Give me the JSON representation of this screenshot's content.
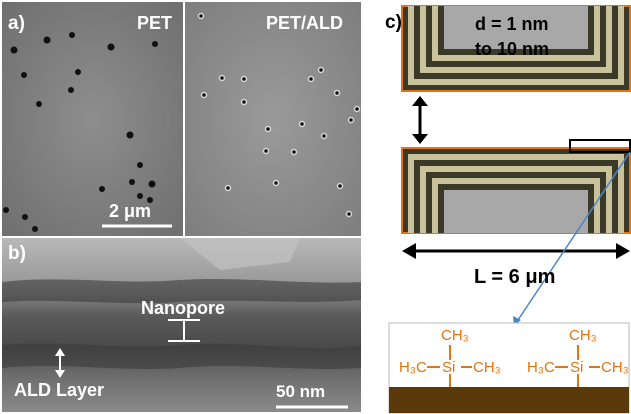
{
  "panels": {
    "a": {
      "letter": "a)",
      "left_title": "PET",
      "right_title": "PET/ALD",
      "scale_bar": "2 μm"
    },
    "b": {
      "letter": "b)",
      "nanopore_label": "Nanopore",
      "ald_label": "ALD Layer",
      "scale_bar": "50 nm"
    },
    "c": {
      "letter": "c)",
      "d_line1": "d = 1 nm",
      "d_line2": "to 10 nm",
      "length_label": "L = 6 μm",
      "molecule_top": "CH₃",
      "molecule_left": "H₃C",
      "molecule_si": "Si",
      "molecule_right": "CH₃"
    }
  },
  "colors": {
    "stripe_dark": "#3b3a28",
    "stripe_light": "#c9c29a",
    "outline": "#e8730c",
    "core": "#a8a8a8",
    "substrate": "#5a3a0a",
    "silane": "#e8730c",
    "leader": "#4a86c8"
  }
}
